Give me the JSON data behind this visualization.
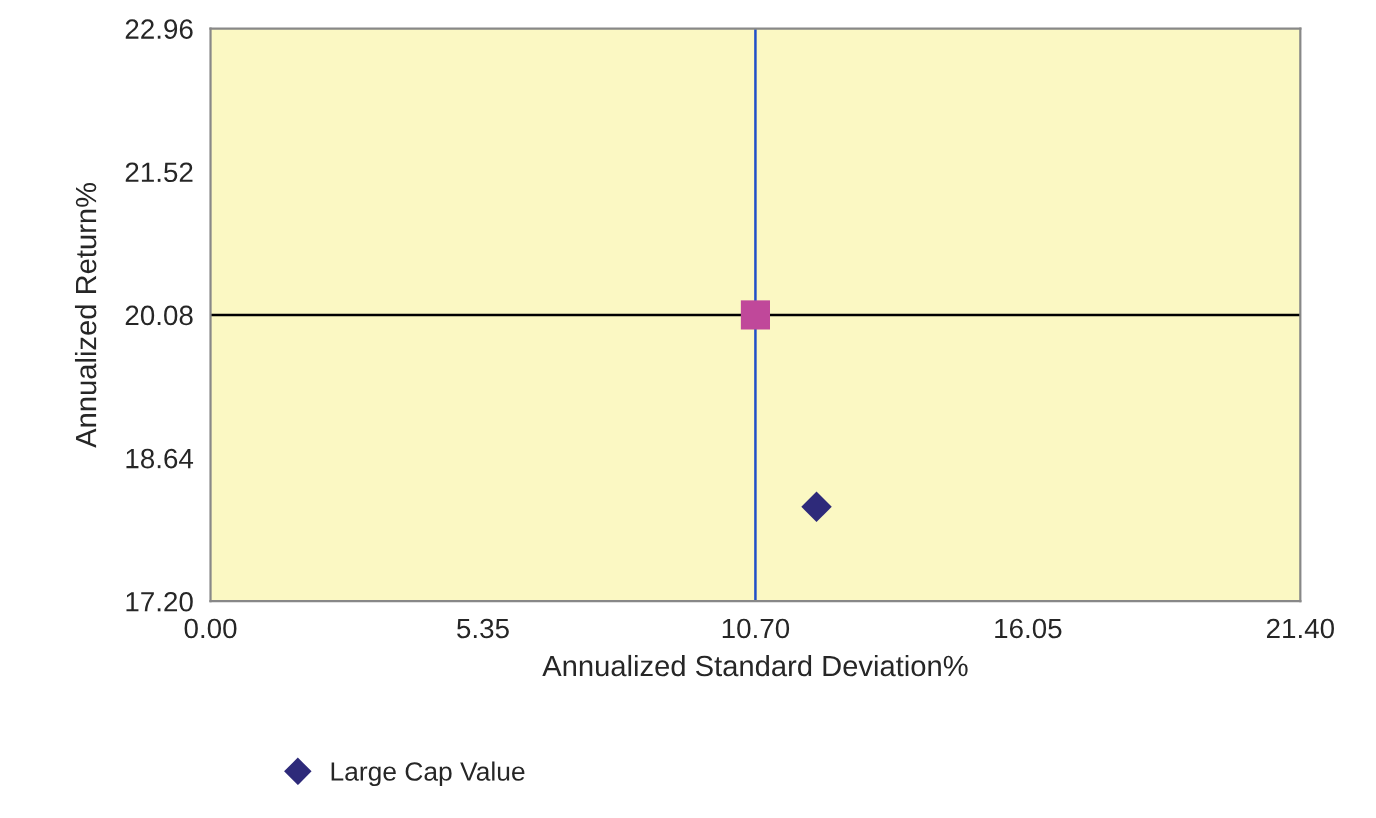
{
  "chart_data": {
    "type": "scatter",
    "xlabel": "Annualized Standard Deviation%",
    "ylabel": "Annualized Return%",
    "xlim": [
      0,
      21.4
    ],
    "xticks": [
      {
        "value": 0,
        "label": "0.00"
      },
      {
        "value": 5.35,
        "label": "5.35"
      },
      {
        "value": 10.7,
        "label": "10.70"
      },
      {
        "value": 16.05,
        "label": "16.05"
      },
      {
        "value": 21.4,
        "label": "21.40"
      }
    ],
    "ylim": [
      17.2,
      22.96
    ],
    "yticks": [
      {
        "value": 17.2,
        "label": "17.20"
      },
      {
        "value": 18.64,
        "label": "18.64"
      },
      {
        "value": 20.08,
        "label": "20.08"
      },
      {
        "value": 21.52,
        "label": "21.52"
      },
      {
        "value": 22.96,
        "label": "22.96"
      }
    ],
    "series": [
      {
        "name": "Large Cap Value",
        "color": "#2e2a7a",
        "marker": "diamond",
        "x": [
          11.9
        ],
        "values": [
          18.15
        ]
      },
      {
        "color": "#c0489a",
        "marker": "square",
        "x": [
          10.7
        ],
        "values": [
          20.08
        ]
      }
    ],
    "ref_lines": [
      {
        "axis": "x",
        "value": 10.7,
        "color": "#2050c8"
      },
      {
        "axis": "y",
        "value": 20.08,
        "color": "#000000"
      }
    ],
    "grid": false,
    "legend": "bottom"
  }
}
